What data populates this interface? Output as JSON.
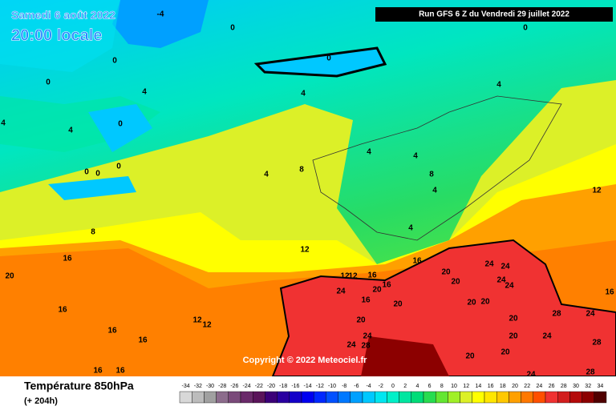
{
  "header": {
    "title": "Samedi 6 août 2022",
    "subtitle": "20:00 locale",
    "run": "Run GFS 6 Z du Vendredi 29 juillet 2022"
  },
  "copyright": "Copyright © 2022 Meteociel.fr",
  "legend": {
    "title": "Température 850hPa",
    "subtitle": "(+ 204h)",
    "ticks": [
      -34,
      -32,
      -30,
      -28,
      -26,
      -24,
      -22,
      -20,
      -18,
      -16,
      -14,
      -12,
      -10,
      -8,
      -6,
      -4,
      -2,
      0,
      2,
      4,
      6,
      8,
      10,
      12,
      14,
      16,
      18,
      20,
      22,
      24,
      26,
      28,
      30,
      32,
      34
    ],
    "colors": [
      "#d8d8d8",
      "#bcbcbc",
      "#a0a0a0",
      "#8c6c8c",
      "#7a4a7a",
      "#6a2a6a",
      "#5a145a",
      "#3c0078",
      "#2a00a0",
      "#1400c8",
      "#0000f0",
      "#0028ff",
      "#0050ff",
      "#0078ff",
      "#00a0ff",
      "#00c8ff",
      "#00e6f0",
      "#00f0c8",
      "#00e6a0",
      "#00dc78",
      "#28dc50",
      "#64e632",
      "#a0f028",
      "#dcf028",
      "#ffff00",
      "#ffe600",
      "#ffc800",
      "#ffa000",
      "#ff7800",
      "#ff5000",
      "#f03232",
      "#d21e1e",
      "#b40a0a",
      "#8c0000",
      "#500000"
    ]
  },
  "contour_labels": [
    -4,
    0,
    0,
    0,
    0,
    0,
    4,
    4,
    4,
    4,
    4,
    0,
    0,
    0,
    0,
    4,
    8,
    4,
    4,
    8,
    4,
    12,
    8,
    4,
    16,
    20,
    12,
    16,
    12,
    12,
    16,
    16,
    20,
    24,
    16,
    20,
    20,
    20,
    24,
    24,
    24,
    24,
    20,
    20,
    20,
    20,
    28,
    24,
    12,
    12,
    16,
    16,
    16,
    16,
    16,
    24,
    24,
    28,
    20,
    20,
    20,
    24,
    28,
    16,
    24,
    28
  ]
}
